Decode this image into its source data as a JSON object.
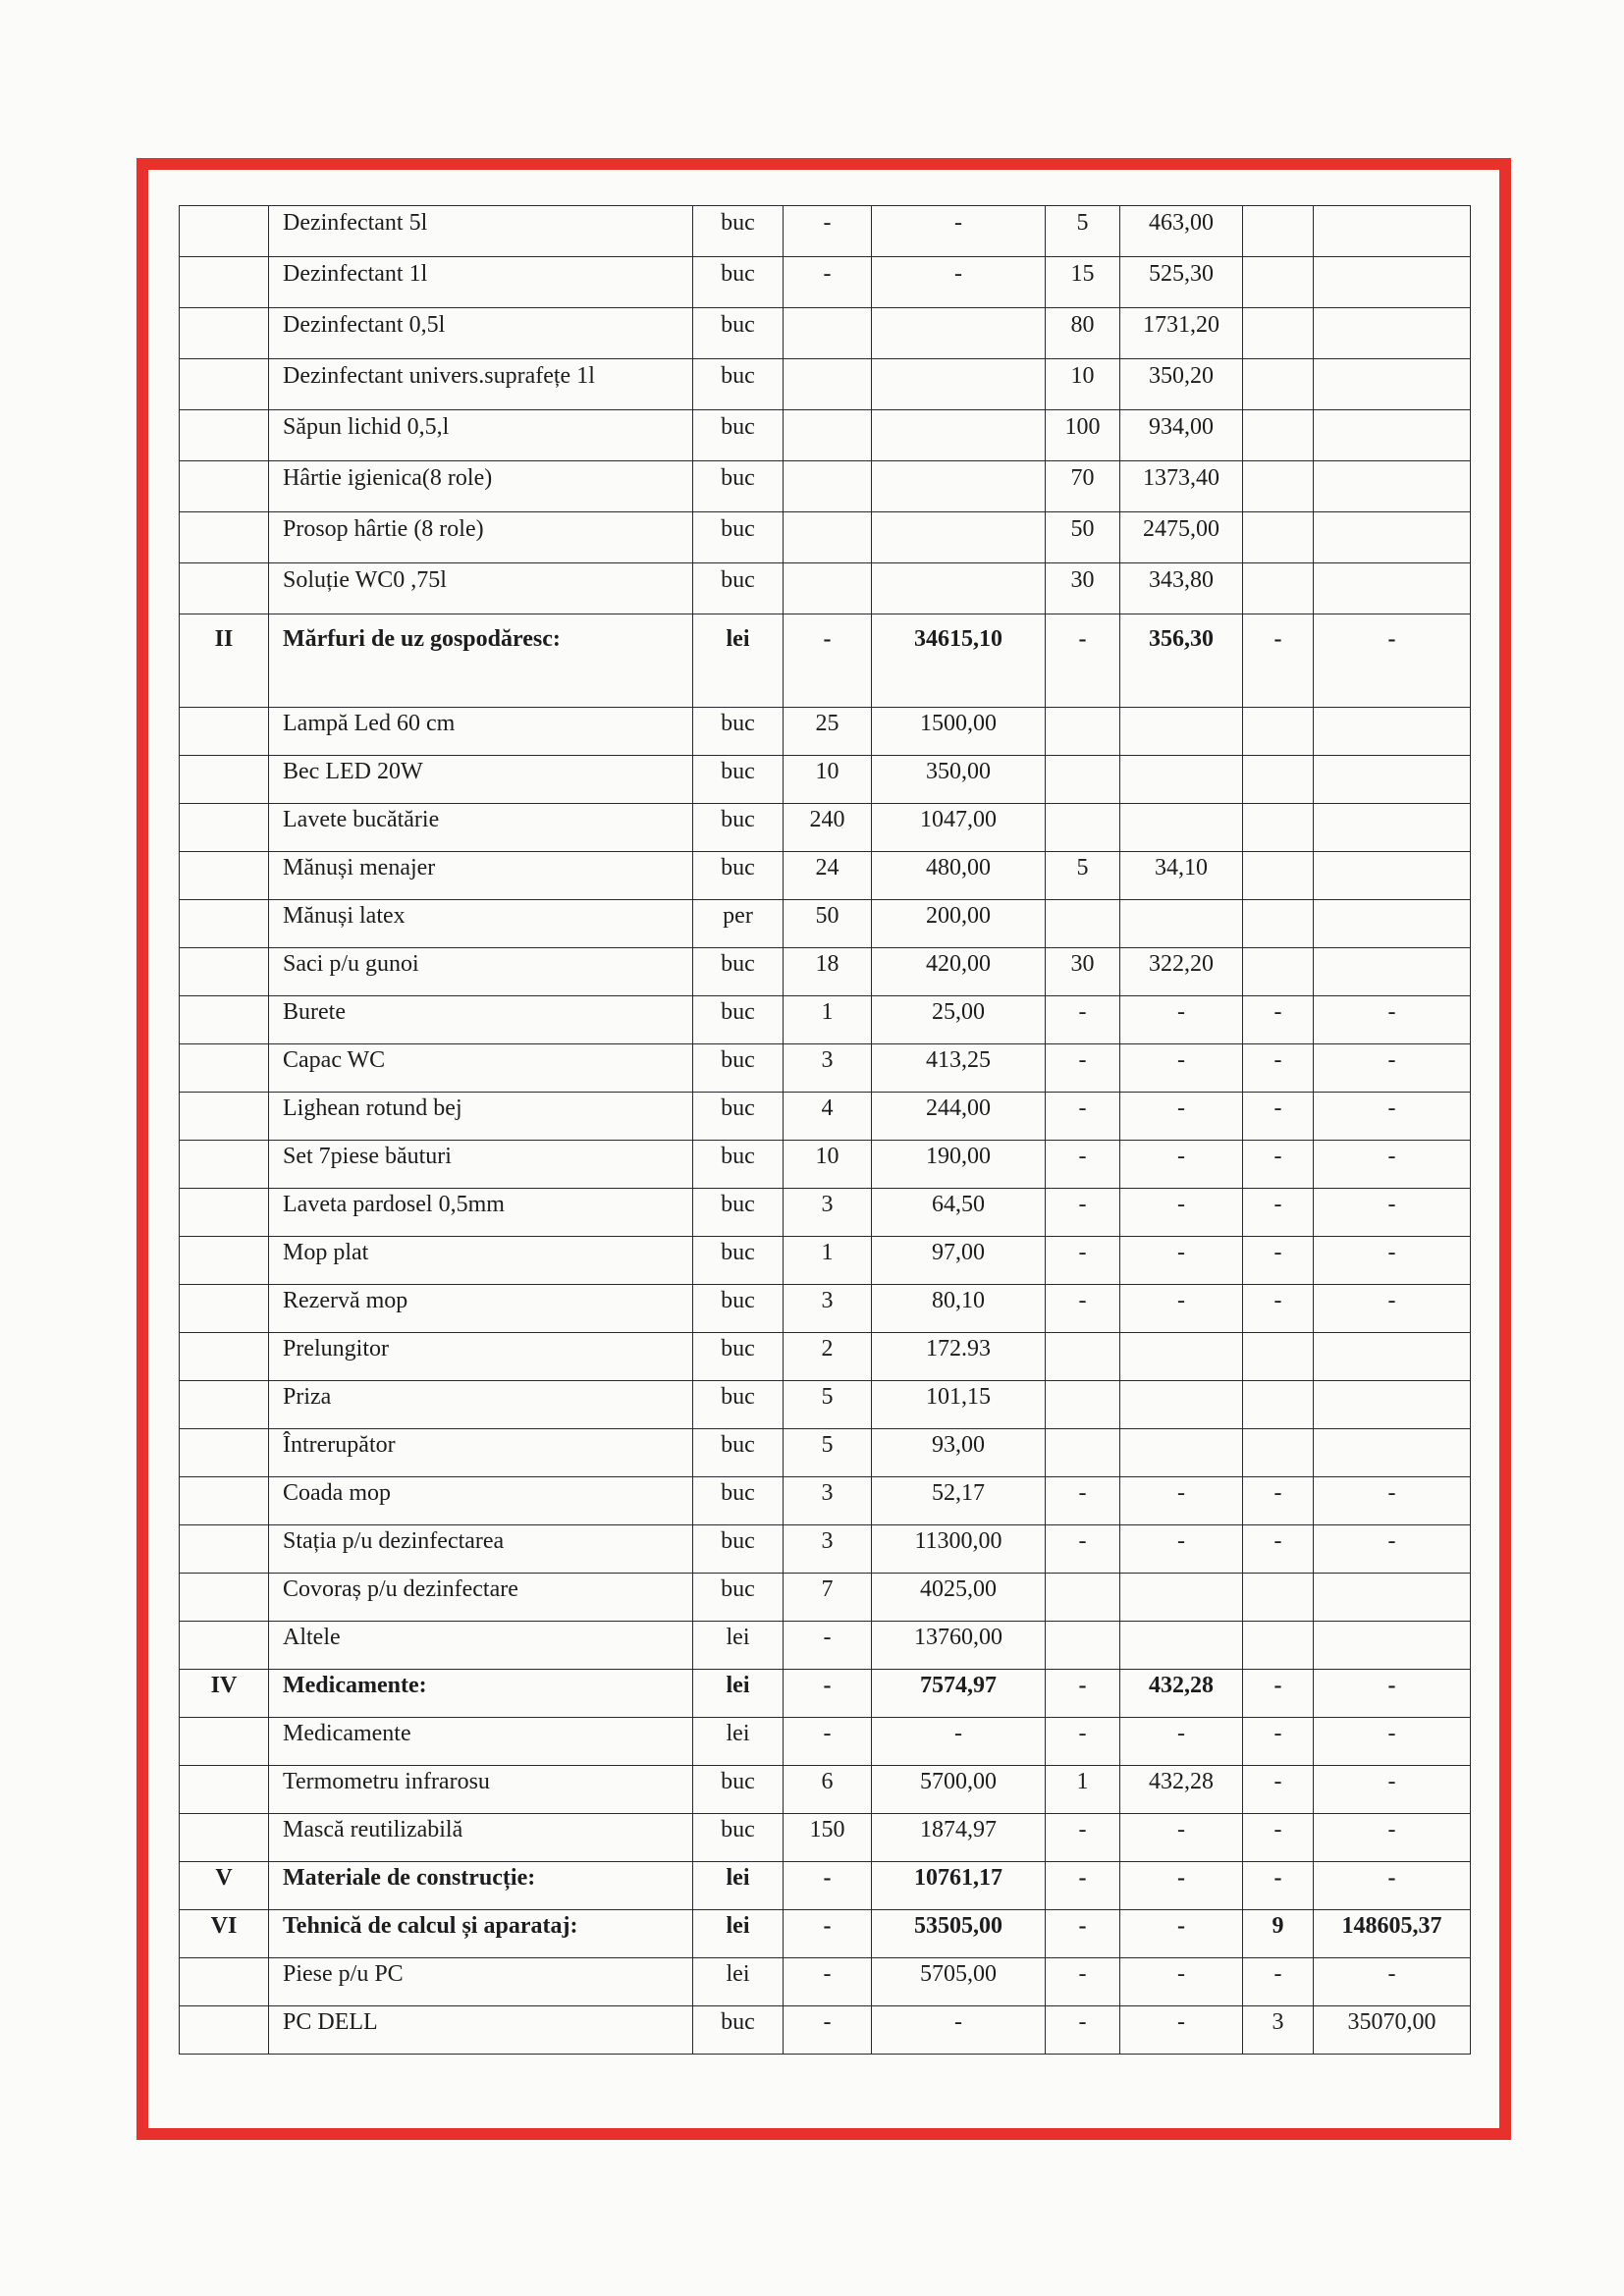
{
  "colors": {
    "frame": "#e8302c",
    "lines": "#2a2a2e"
  },
  "rows": [
    {
      "style": "top",
      "cells": [
        "",
        "Dezinfectant 5l",
        "buc",
        "-",
        "-",
        "5",
        "463,00",
        "",
        ""
      ]
    },
    {
      "style": "top",
      "cells": [
        "",
        "Dezinfectant 1l",
        "buc",
        "-",
        "-",
        "15",
        "525,30",
        "",
        ""
      ]
    },
    {
      "style": "top",
      "cells": [
        "",
        "Dezinfectant 0,5l",
        "buc",
        "",
        "",
        "80",
        "1731,20",
        "",
        ""
      ]
    },
    {
      "style": "top",
      "cells": [
        "",
        "Dezinfectant univers.suprafețe 1l",
        "buc",
        "",
        "",
        "10",
        "350,20",
        "",
        ""
      ]
    },
    {
      "style": "top",
      "cells": [
        "",
        "Săpun lichid 0,5,l",
        "buc",
        "",
        "",
        "100",
        "934,00",
        "",
        ""
      ]
    },
    {
      "style": "top",
      "cells": [
        "",
        "Hârtie igienica(8 role)",
        "buc",
        "",
        "",
        "70",
        "1373,40",
        "",
        ""
      ]
    },
    {
      "style": "top",
      "cells": [
        "",
        "Prosop hârtie (8 role)",
        "buc",
        "",
        "",
        "50",
        "2475,00",
        "",
        ""
      ]
    },
    {
      "style": "top",
      "cells": [
        "",
        "Soluție WC0 ,75l",
        "buc",
        "",
        "",
        "30",
        "343,80",
        "",
        ""
      ]
    },
    {
      "style": "sec",
      "bold": true,
      "cells": [
        "II",
        "Mărfuri de uz gospodăresc:",
        "lei",
        "-",
        "34615,10",
        "-",
        "356,30",
        "-",
        "-"
      ]
    },
    {
      "style": "norm",
      "cells": [
        "",
        "Lampă Led 60 cm",
        "buc",
        "25",
        "1500,00",
        "",
        "",
        "",
        ""
      ]
    },
    {
      "style": "norm",
      "cells": [
        "",
        "Bec LED 20W",
        "buc",
        "10",
        "350,00",
        "",
        "",
        "",
        ""
      ]
    },
    {
      "style": "norm",
      "cells": [
        "",
        "Lavete bucătărie",
        "buc",
        "240",
        "1047,00",
        "",
        "",
        "",
        ""
      ]
    },
    {
      "style": "norm",
      "cells": [
        "",
        "Mănuși menajer",
        "buc",
        "24",
        "480,00",
        "5",
        "34,10",
        "",
        ""
      ]
    },
    {
      "style": "norm",
      "cells": [
        "",
        "Mănuși latex",
        "per",
        "50",
        "200,00",
        "",
        "",
        "",
        ""
      ]
    },
    {
      "style": "norm",
      "cells": [
        "",
        "Saci p/u gunoi",
        "buc",
        "18",
        "420,00",
        "30",
        "322,20",
        "",
        ""
      ]
    },
    {
      "style": "norm",
      "cells": [
        "",
        "Burete",
        "buc",
        "1",
        "25,00",
        "-",
        "-",
        "-",
        "-"
      ]
    },
    {
      "style": "norm",
      "cells": [
        "",
        "Capac WC",
        "buc",
        "3",
        "413,25",
        "-",
        "-",
        "-",
        "-"
      ]
    },
    {
      "style": "norm",
      "cells": [
        "",
        "Lighean rotund bej",
        "buc",
        "4",
        "244,00",
        "-",
        "-",
        "-",
        "-"
      ]
    },
    {
      "style": "norm",
      "cells": [
        "",
        "Set 7piese băuturi",
        "buc",
        "10",
        "190,00",
        "-",
        "-",
        "-",
        "-"
      ]
    },
    {
      "style": "norm",
      "cells": [
        "",
        "Laveta pardosel 0,5mm",
        "buc",
        "3",
        "64,50",
        "-",
        "-",
        "-",
        "-"
      ]
    },
    {
      "style": "norm",
      "cells": [
        "",
        "Mop plat",
        "buc",
        "1",
        "97,00",
        "-",
        "-",
        "-",
        "-"
      ]
    },
    {
      "style": "norm",
      "cells": [
        "",
        "Rezervă mop",
        "buc",
        "3",
        "80,10",
        "-",
        "-",
        "-",
        "-"
      ]
    },
    {
      "style": "norm",
      "cells": [
        "",
        "Prelungitor",
        "buc",
        "2",
        "172.93",
        "",
        "",
        "",
        ""
      ]
    },
    {
      "style": "norm",
      "cells": [
        "",
        "Priza",
        "buc",
        "5",
        "101,15",
        "",
        "",
        "",
        ""
      ]
    },
    {
      "style": "norm",
      "cells": [
        "",
        "Întrerupător",
        "buc",
        "5",
        "93,00",
        "",
        "",
        "",
        ""
      ]
    },
    {
      "style": "norm",
      "cells": [
        "",
        "Coada mop",
        "buc",
        "3",
        "52,17",
        "-",
        "-",
        "-",
        "-"
      ]
    },
    {
      "style": "norm",
      "cells": [
        "",
        "Stația p/u dezinfectarea",
        "buc",
        "3",
        "11300,00",
        "-",
        "-",
        "-",
        "-"
      ]
    },
    {
      "style": "norm",
      "cells": [
        "",
        "Covoraș p/u dezinfectare",
        "buc",
        "7",
        "4025,00",
        "",
        "",
        "",
        ""
      ]
    },
    {
      "style": "norm",
      "cells": [
        "",
        "Altele",
        "lei",
        "-",
        "13760,00",
        "",
        "",
        "",
        ""
      ]
    },
    {
      "style": "norm",
      "bold": true,
      "cells": [
        "IV",
        "Medicamente:",
        "lei",
        "-",
        "7574,97",
        "-",
        "432,28",
        "-",
        "-"
      ]
    },
    {
      "style": "norm",
      "cells": [
        "",
        "Medicamente",
        "lei",
        "-",
        "-",
        "-",
        "-",
        "-",
        "-"
      ]
    },
    {
      "style": "norm",
      "cells": [
        "",
        "Termometru  infrarosu",
        "buc",
        "6",
        "5700,00",
        "1",
        "432,28",
        "-",
        "-"
      ]
    },
    {
      "style": "norm",
      "cells": [
        "",
        "Mască reutilizabilă",
        "buc",
        "150",
        "1874,97",
        "-",
        "-",
        "-",
        "-"
      ]
    },
    {
      "style": "norm",
      "bold": true,
      "cells": [
        "V",
        "Materiale de construcție:",
        "lei",
        "-",
        "10761,17",
        "-",
        "-",
        "-",
        "-"
      ]
    },
    {
      "style": "norm",
      "bold": true,
      "cells": [
        "VI",
        "Tehnică de calcul și aparataj:",
        "lei",
        "-",
        "53505,00",
        "-",
        "-",
        "9",
        "148605,37"
      ]
    },
    {
      "style": "norm",
      "cells": [
        "",
        "Piese p/u PC",
        "lei",
        "-",
        "5705,00",
        "-",
        "-",
        "-",
        "-"
      ]
    },
    {
      "style": "norm",
      "cells": [
        "",
        "PC DELL",
        "buc",
        "-",
        "-",
        "-",
        "-",
        "3",
        "35070,00"
      ]
    }
  ]
}
